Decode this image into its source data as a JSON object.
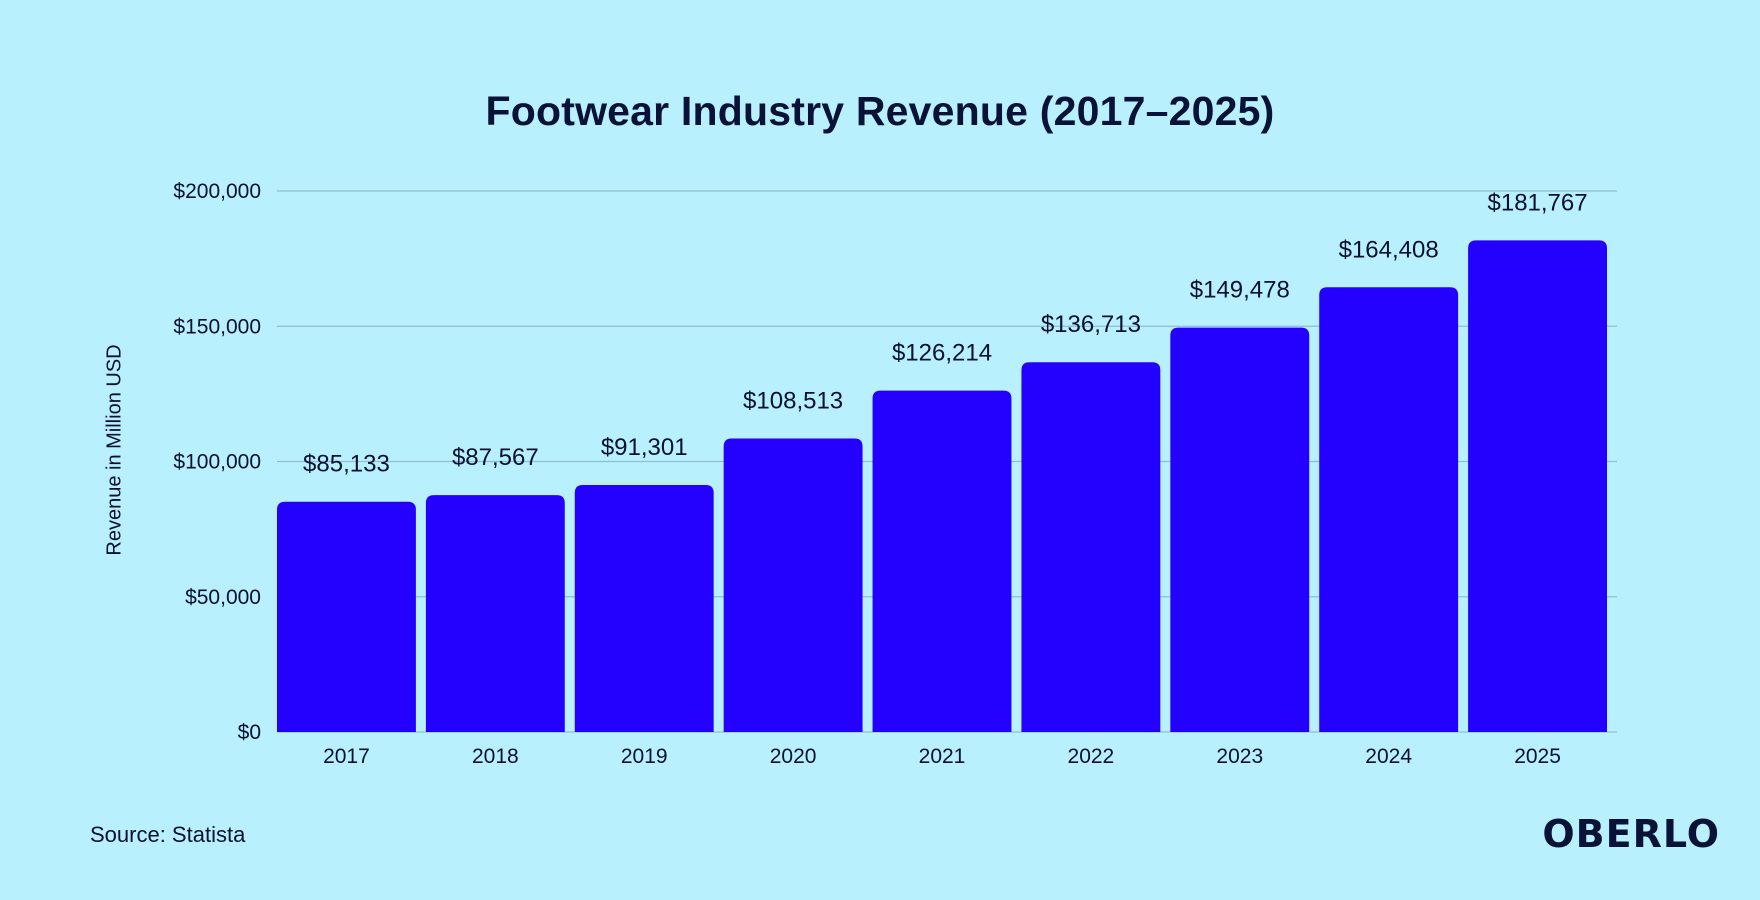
{
  "chart_data": {
    "type": "bar",
    "title": "Footwear Industry Revenue (2017–2025)",
    "ylabel": "Revenue in Million USD",
    "xlabel": "",
    "categories": [
      "2017",
      "2018",
      "2019",
      "2020",
      "2021",
      "2022",
      "2023",
      "2024",
      "2025"
    ],
    "values": [
      85133,
      87567,
      91301,
      108513,
      126214,
      136713,
      149478,
      164408,
      181767
    ],
    "value_labels": [
      "$85,133",
      "$87,567",
      "$91,301",
      "$108,513",
      "$126,214",
      "$136,713",
      "$149,478",
      "$164,408",
      "$181,767"
    ],
    "ylim": [
      0,
      200000
    ],
    "yticks": [
      0,
      50000,
      100000,
      150000,
      200000
    ],
    "ytick_labels": [
      "$0",
      "$50,000",
      "$100,000",
      "$150,000",
      "$200,000"
    ],
    "grid": true,
    "legend": "none",
    "bar_color": "#2400ff",
    "gridline_color": "#8fbfcc"
  },
  "footer": {
    "source": "Source: Statista",
    "brand": "OBERLO"
  }
}
